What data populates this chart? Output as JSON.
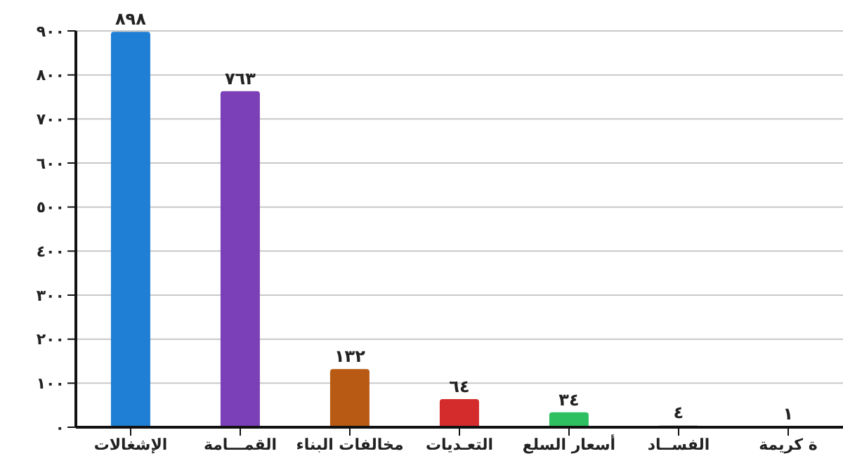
{
  "chart_data": {
    "type": "bar",
    "categories": [
      "الإشغالات",
      "القمـــامة",
      "مخالفات البناء",
      "التعـديات",
      "أسعار السلع",
      "الفســاد",
      "ة كريمة"
    ],
    "values": [
      898,
      763,
      132,
      64,
      34,
      4,
      1
    ],
    "colors": [
      "#1f7fd4",
      "#7b3fb8",
      "#b85a14",
      "#d42c2c",
      "#2ec060",
      "#9a9a9a",
      "#9a9a9a"
    ],
    "value_labels": [
      "٨٩٨",
      "٧٦٣",
      "١٣٢",
      "٦٤",
      "٣٤",
      "٤",
      "١"
    ],
    "ylim": [
      0,
      900
    ],
    "yticks": [
      {
        "value": 0,
        "label": "٠"
      },
      {
        "value": 100,
        "label": "١٠٠"
      },
      {
        "value": 200,
        "label": "٢٠٠"
      },
      {
        "value": 300,
        "label": "٣٠٠"
      },
      {
        "value": 400,
        "label": "٤٠٠"
      },
      {
        "value": 500,
        "label": "٥٠٠"
      },
      {
        "value": 600,
        "label": "٦٠٠"
      },
      {
        "value": 700,
        "label": "٧٠٠"
      },
      {
        "value": 800,
        "label": "٨٠٠"
      },
      {
        "value": 900,
        "label": "٩٠٠"
      }
    ],
    "grid": "y"
  }
}
